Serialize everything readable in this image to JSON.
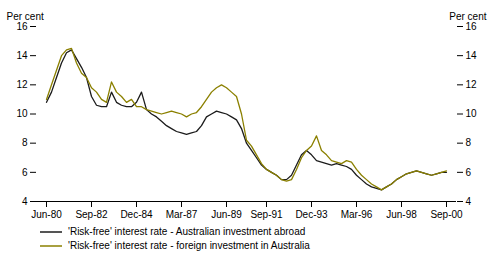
{
  "chart_data": {
    "type": "line",
    "ylabel": "Per cent",
    "y2label": "Per cent",
    "categories": [
      "Jun-80",
      null,
      null,
      null,
      null,
      null,
      null,
      null,
      null,
      "Sep-82",
      null,
      null,
      null,
      null,
      null,
      null,
      null,
      null,
      "Dec-84",
      null,
      null,
      null,
      null,
      null,
      null,
      null,
      null,
      "Mar-87",
      null,
      null,
      null,
      null,
      null,
      null,
      null,
      null,
      "Jun-89",
      null,
      null,
      null,
      null,
      null,
      null,
      null,
      "Sep-91",
      null,
      null,
      null,
      null,
      null,
      null,
      null,
      null,
      "Dec-93",
      null,
      null,
      null,
      null,
      null,
      null,
      null,
      null,
      "Mar-96",
      null,
      null,
      null,
      null,
      null,
      null,
      null,
      null,
      "Jun-98",
      null,
      null,
      null,
      null,
      null,
      null,
      null,
      null,
      "Sep-00"
    ],
    "series": [
      {
        "name": "'Risk-free' interest rate - Australian investment abroad",
        "color": "#1c1c1c",
        "values": [
          10.8,
          11.5,
          12.5,
          13.5,
          14.2,
          14.4,
          13.8,
          13.2,
          12.5,
          11.2,
          10.6,
          10.5,
          10.5,
          11.5,
          10.8,
          10.6,
          10.5,
          10.5,
          10.8,
          11.5,
          10.3,
          10.0,
          9.8,
          9.5,
          9.2,
          9.0,
          8.8,
          8.7,
          8.6,
          8.7,
          8.8,
          9.2,
          9.8,
          10.0,
          10.2,
          10.1,
          10.0,
          9.8,
          9.6,
          9.0,
          8.0,
          7.5,
          7.0,
          6.5,
          6.2,
          6.0,
          5.8,
          5.5,
          5.5,
          5.8,
          6.5,
          7.2,
          7.5,
          7.2,
          6.8,
          6.7,
          6.6,
          6.5,
          6.6,
          6.5,
          6.4,
          6.2,
          5.8,
          5.5,
          5.2,
          5.0,
          4.9,
          4.8,
          5.0,
          5.2,
          5.5,
          5.7,
          5.9,
          6.0,
          6.1,
          6.0,
          5.9,
          5.8,
          5.9,
          6.0,
          6.0
        ]
      },
      {
        "name": "'Risk-free' interest rate - foreign investment in Australia",
        "color": "#8B8000",
        "values": [
          11.0,
          12.0,
          13.0,
          14.0,
          14.4,
          14.5,
          13.5,
          12.8,
          12.5,
          11.8,
          11.5,
          11.0,
          10.8,
          12.2,
          11.5,
          11.2,
          10.8,
          11.0,
          10.5,
          10.5,
          10.3,
          10.2,
          10.1,
          10.0,
          10.1,
          10.2,
          10.1,
          10.0,
          9.8,
          10.0,
          10.1,
          10.5,
          11.0,
          11.5,
          11.8,
          12.0,
          11.8,
          11.5,
          11.2,
          10.0,
          8.2,
          7.8,
          7.2,
          6.6,
          6.2,
          6.0,
          5.8,
          5.5,
          5.4,
          5.5,
          6.2,
          7.0,
          7.5,
          7.8,
          8.5,
          7.5,
          7.2,
          6.8,
          6.7,
          6.6,
          6.8,
          6.7,
          6.2,
          5.8,
          5.5,
          5.2,
          5.0,
          4.8,
          5.0,
          5.2,
          5.5,
          5.7,
          5.9,
          6.0,
          6.1,
          6.0,
          5.9,
          5.8,
          5.9,
          6.0,
          6.1
        ]
      }
    ],
    "ylim": [
      4,
      16
    ],
    "yticks": [
      4,
      6,
      8,
      10,
      12,
      14,
      16
    ],
    "y2lim": [
      4,
      16
    ],
    "y2ticks": [
      4,
      6,
      8,
      10,
      12,
      14,
      16
    ],
    "grid": false,
    "legend": "lower left"
  }
}
